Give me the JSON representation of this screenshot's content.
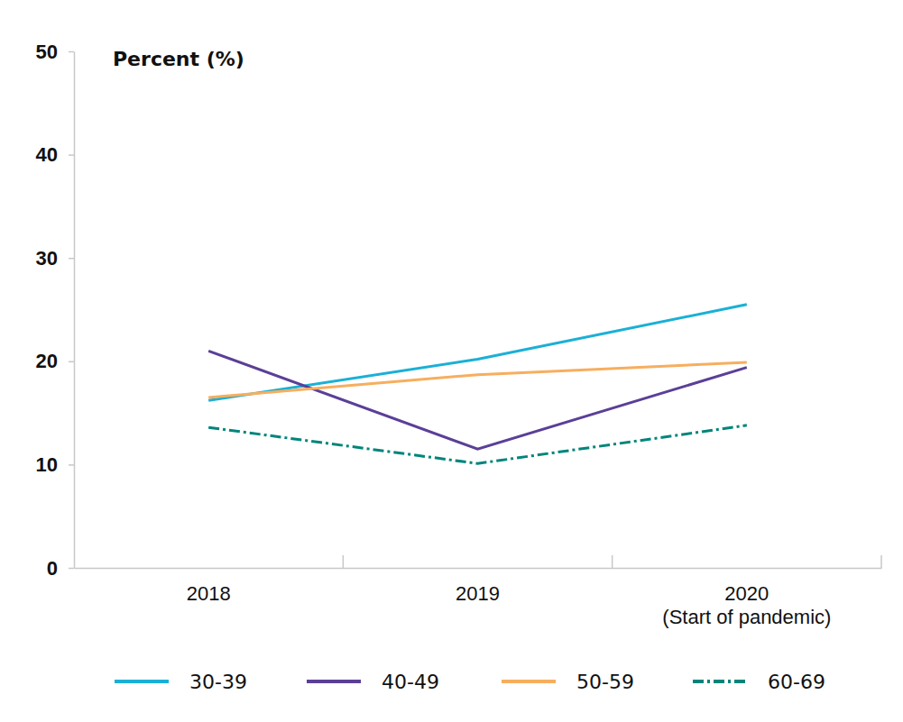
{
  "chart_data": {
    "type": "line",
    "y_label": "Percent (%)",
    "categories": [
      "2018",
      "2019",
      "2020\n(Start of pandemic)"
    ],
    "ylim": [
      0,
      50
    ],
    "yticks": [
      0,
      10,
      20,
      30,
      40,
      50
    ],
    "grid": false,
    "legend": "bottom",
    "series": [
      {
        "name": "30-39",
        "color": "#1ab0d6",
        "line_style": "solid",
        "values": [
          16.2,
          20.2,
          25.5
        ]
      },
      {
        "name": "40-49",
        "color": "#5b3f97",
        "line_style": "solid",
        "values": [
          21.0,
          11.5,
          19.4
        ]
      },
      {
        "name": "50-59",
        "color": "#f7ae5e",
        "line_style": "solid",
        "values": [
          16.5,
          18.7,
          19.9
        ]
      },
      {
        "name": "60-69",
        "color": "#00857b",
        "line_style": "dash-dot",
        "values": [
          13.6,
          10.1,
          13.8
        ]
      }
    ]
  }
}
